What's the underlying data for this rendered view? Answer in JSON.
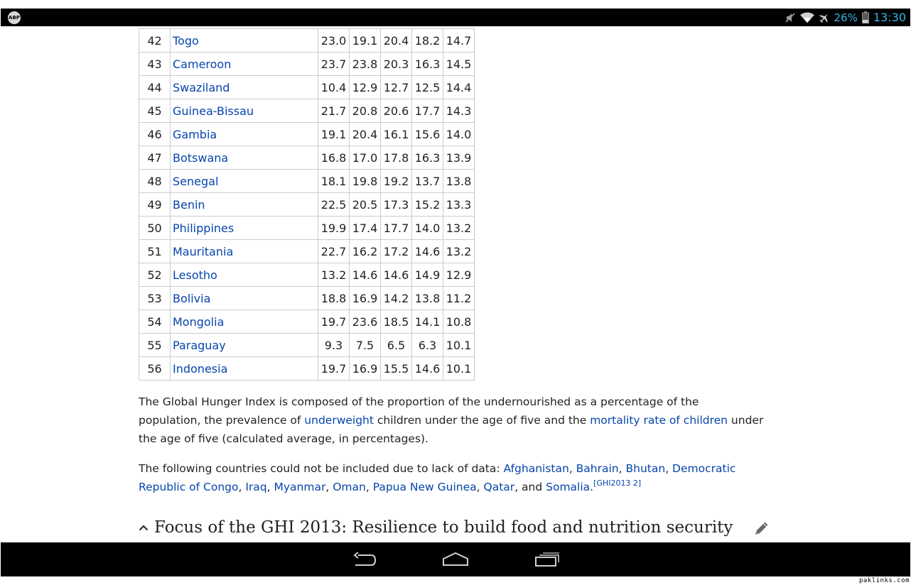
{
  "status_bar": {
    "left_icon": "app-notification-icon",
    "left_icon_text": "ABP",
    "icons": [
      "mute-icon",
      "wifi-icon",
      "airplane-mode-icon",
      "battery-icon"
    ],
    "battery_percent": "26%",
    "clock": "13:30",
    "accent_color": "#33b5e5"
  },
  "table": {
    "rows": [
      {
        "rank": "42",
        "country": "Togo",
        "v1": "23.0",
        "v2": "19.1",
        "v3": "20.4",
        "v4": "18.2",
        "v5": "14.7"
      },
      {
        "rank": "43",
        "country": "Cameroon",
        "v1": "23.7",
        "v2": "23.8",
        "v3": "20.3",
        "v4": "16.3",
        "v5": "14.5"
      },
      {
        "rank": "44",
        "country": "Swaziland",
        "v1": "10.4",
        "v2": "12.9",
        "v3": "12.7",
        "v4": "12.5",
        "v5": "14.4"
      },
      {
        "rank": "45",
        "country": "Guinea-Bissau",
        "v1": "21.7",
        "v2": "20.8",
        "v3": "20.6",
        "v4": "17.7",
        "v5": "14.3"
      },
      {
        "rank": "46",
        "country": "Gambia",
        "v1": "19.1",
        "v2": "20.4",
        "v3": "16.1",
        "v4": "15.6",
        "v5": "14.0"
      },
      {
        "rank": "47",
        "country": "Botswana",
        "v1": "16.8",
        "v2": "17.0",
        "v3": "17.8",
        "v4": "16.3",
        "v5": "13.9"
      },
      {
        "rank": "48",
        "country": "Senegal",
        "v1": "18.1",
        "v2": "19.8",
        "v3": "19.2",
        "v4": "13.7",
        "v5": "13.8"
      },
      {
        "rank": "49",
        "country": "Benin",
        "v1": "22.5",
        "v2": "20.5",
        "v3": "17.3",
        "v4": "15.2",
        "v5": "13.3"
      },
      {
        "rank": "50",
        "country": "Philippines",
        "v1": "19.9",
        "v2": "17.4",
        "v3": "17.7",
        "v4": "14.0",
        "v5": "13.2"
      },
      {
        "rank": "51",
        "country": "Mauritania",
        "v1": "22.7",
        "v2": "16.2",
        "v3": "17.2",
        "v4": "14.6",
        "v5": "13.2"
      },
      {
        "rank": "52",
        "country": "Lesotho",
        "v1": "13.2",
        "v2": "14.6",
        "v3": "14.6",
        "v4": "14.9",
        "v5": "12.9"
      },
      {
        "rank": "53",
        "country": "Bolivia",
        "v1": "18.8",
        "v2": "16.9",
        "v3": "14.2",
        "v4": "13.8",
        "v5": "11.2"
      },
      {
        "rank": "54",
        "country": "Mongolia",
        "v1": "19.7",
        "v2": "23.6",
        "v3": "18.5",
        "v4": "14.1",
        "v5": "10.8"
      },
      {
        "rank": "55",
        "country": "Paraguay",
        "v1": "9.3",
        "v2": "7.5",
        "v3": "6.5",
        "v4": "6.3",
        "v5": "10.1"
      },
      {
        "rank": "56",
        "country": "Indonesia",
        "v1": "19.7",
        "v2": "16.9",
        "v3": "15.5",
        "v4": "14.6",
        "v5": "10.1"
      }
    ]
  },
  "paragraph1": {
    "t1": "The Global Hunger Index is composed of the proportion of the undernourished as a percentage of the population, the prevalence of ",
    "link1": "underweight",
    "t2": " children under the age of five and the ",
    "link2": "mortality rate of children",
    "t3": " under the age of five (calculated average, in percentages)."
  },
  "paragraph2": {
    "intro": "The following countries could not be included due to lack of data: ",
    "countries": [
      "Afghanistan",
      "Bahrain",
      "Bhutan",
      "Democratic Republic of Congo",
      "Iraq",
      "Myanmar",
      "Oman",
      "Papua New Guinea",
      "Qatar",
      "Somalia"
    ],
    "sep": ", ",
    "and": ", and ",
    "end": ".",
    "ref": "[GHI2013 2]"
  },
  "section": {
    "title": "Focus of the GHI 2013: Resilience to build food and nutrition security",
    "chevron_icon": "chevron-up-icon",
    "edit_icon": "pencil-edit-icon"
  },
  "nav_bar": {
    "buttons": [
      "back-icon",
      "home-icon",
      "recent-apps-icon"
    ]
  },
  "watermark": "paklinks.com",
  "colors": {
    "link": "#0645ad",
    "text": "#222222",
    "table_border": "#c8ccd1"
  }
}
